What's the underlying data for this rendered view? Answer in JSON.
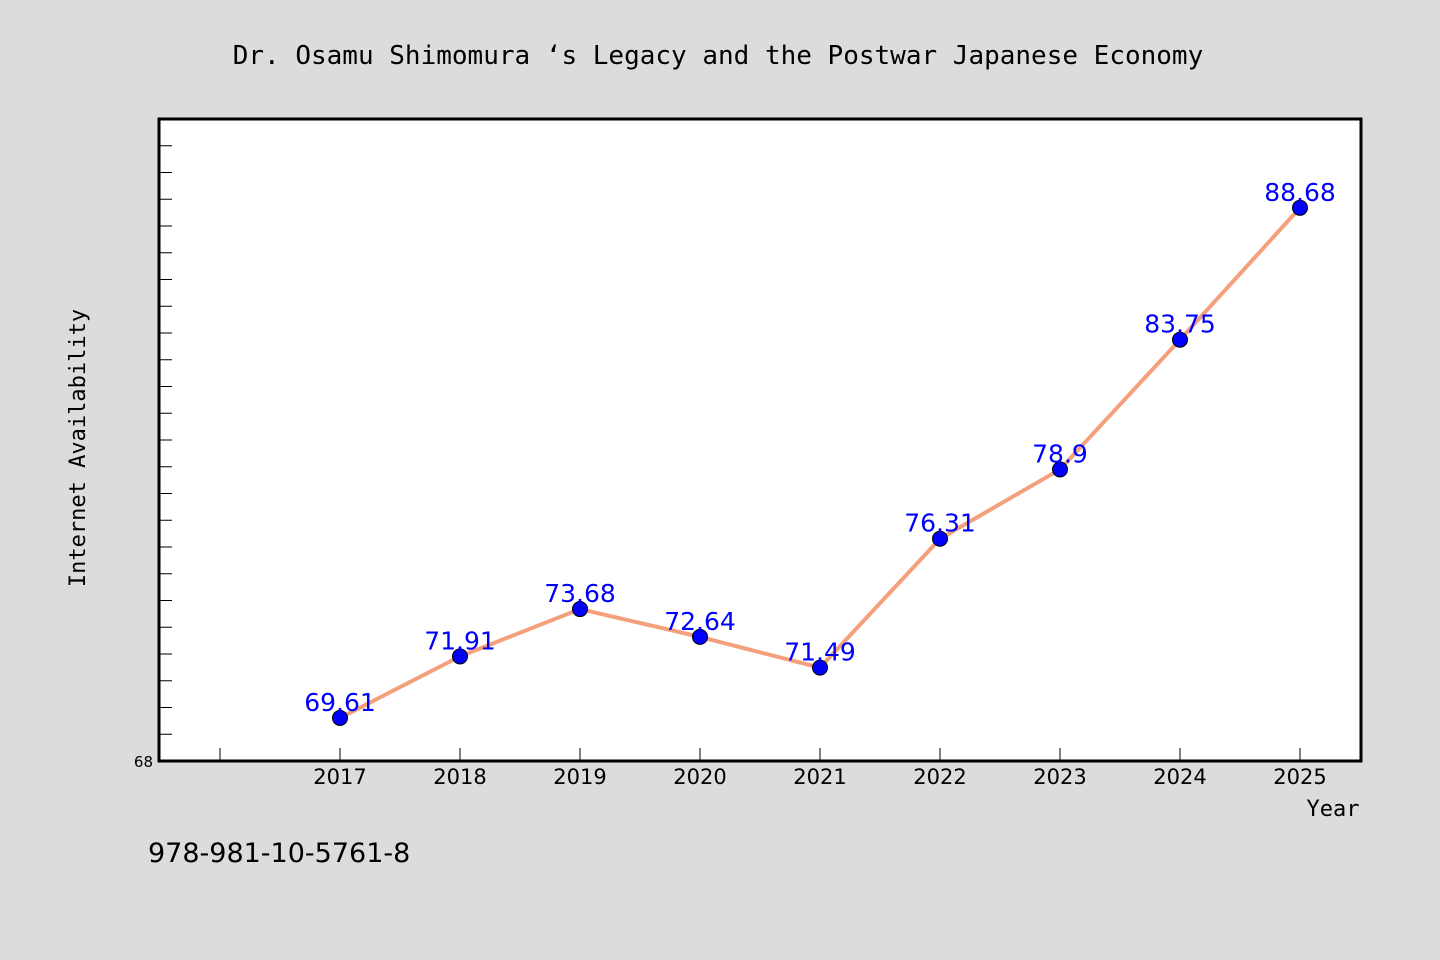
{
  "chart_data": {
    "type": "line",
    "title": "Dr. Osamu Shimomura ‘s Legacy and the Postwar Japanese Economy",
    "xlabel": "Year",
    "ylabel": "Internet Availability",
    "categories": [
      "2017",
      "2018",
      "2019",
      "2020",
      "2021",
      "2022",
      "2023",
      "2024",
      "2025"
    ],
    "series": [
      {
        "values": [
          69.61,
          71.91,
          73.68,
          72.64,
          71.49,
          76.31,
          78.9,
          83.75,
          88.68
        ],
        "labels": [
          "69.61",
          "71.91",
          "73.68",
          "72.64",
          "71.49",
          "76.31",
          "78.9",
          "83.75",
          "88.68"
        ]
      }
    ],
    "ylim": [
      68,
      92
    ],
    "yticks_labeled": [
      "68"
    ],
    "line_color": "#f4a07c",
    "marker_color": "#0000ff",
    "label_color": "#0000ff",
    "grid": false,
    "legend": "none"
  },
  "footer": {
    "isbn": "978-981-10-5761-8"
  }
}
